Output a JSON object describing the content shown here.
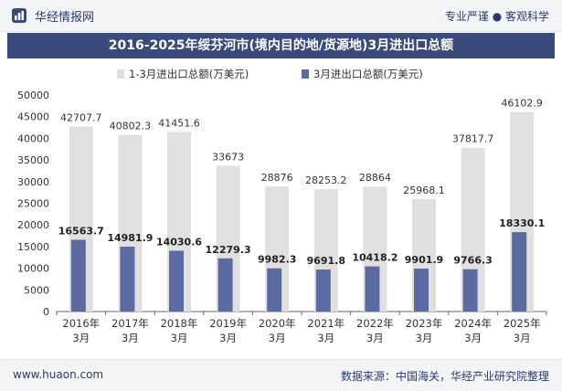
{
  "header": {
    "brand": "华经情报网",
    "tagline": "专业严谨 ● 客观科学"
  },
  "chart_data": {
    "type": "bar",
    "title": "2016-2025年绥芬河市(境内目的地/货源地)3月进出口总额",
    "categories": [
      [
        "2016年",
        "3月"
      ],
      [
        "2017年",
        "3月"
      ],
      [
        "2018年",
        "3月"
      ],
      [
        "2019年",
        "3月"
      ],
      [
        "2020年",
        "3月"
      ],
      [
        "2021年",
        "3月"
      ],
      [
        "2022年",
        "3月"
      ],
      [
        "2023年",
        "3月"
      ],
      [
        "2024年",
        "3月"
      ],
      [
        "2025年",
        "3月"
      ]
    ],
    "series": [
      {
        "name": "1-3月进出口总额(万美元)",
        "values": [
          42707.7,
          40802.3,
          41451.6,
          33673,
          28876,
          28253.2,
          28864,
          25968.1,
          37817.7,
          46102.9
        ],
        "labels": [
          "42707.7",
          "40802.3",
          "41451.6",
          "33673",
          "28876",
          "28253.2",
          "28864",
          "25968.1",
          "37817.7",
          "46102.9"
        ],
        "color": "#e0e0e0"
      },
      {
        "name": "3月进出口总额(万美元)",
        "values": [
          16563.7,
          14981.9,
          14030.6,
          12279.3,
          9982.3,
          9691.8,
          10418.2,
          9901.9,
          9766.3,
          18330.1
        ],
        "labels": [
          "16563.7",
          "14981.9",
          "14030.6",
          "12279.3",
          "9982.3",
          "9691.8",
          "10418.2",
          "9901.9",
          "9766.3",
          "18330.1"
        ],
        "color": "#5b6aa0"
      }
    ],
    "ylim": [
      0,
      50000
    ],
    "yticks": [
      0,
      5000,
      10000,
      15000,
      20000,
      25000,
      30000,
      35000,
      40000,
      45000,
      50000
    ],
    "legend_position": "top-center",
    "grid": false
  },
  "footer": {
    "website": "www.huaon.com",
    "source": "数据来源：中国海关，华经产业研究院整理"
  }
}
